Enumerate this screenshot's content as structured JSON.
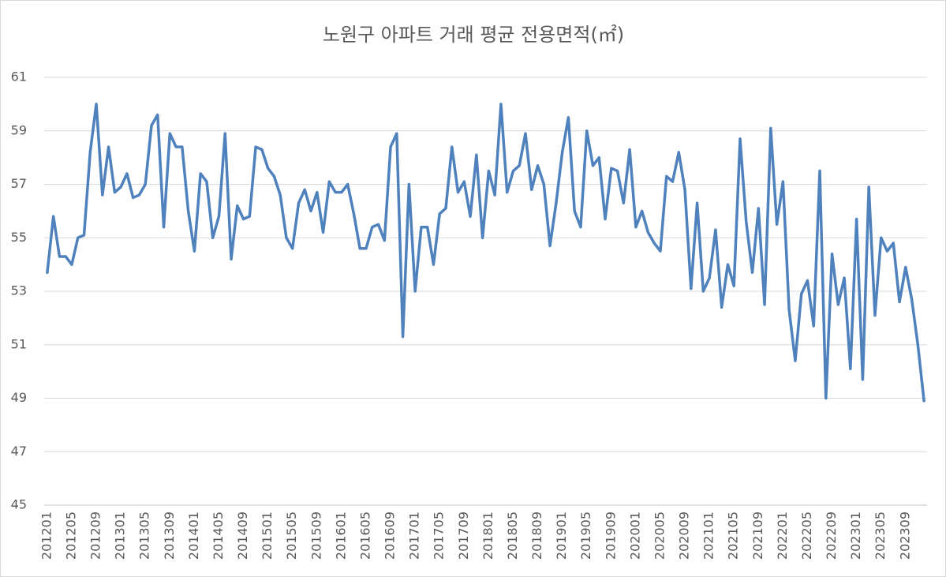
{
  "chart_data": {
    "type": "line",
    "title": "노원구 아파트 거래 평균 전용면적(㎡)",
    "categories": [
      "201201",
      null,
      null,
      null,
      "201205",
      null,
      null,
      null,
      "201209",
      null,
      null,
      null,
      "201301",
      null,
      null,
      null,
      "201305",
      null,
      null,
      null,
      "201309",
      null,
      null,
      null,
      "201401",
      null,
      null,
      null,
      "201405",
      null,
      null,
      null,
      "201409",
      null,
      null,
      null,
      "201501",
      null,
      null,
      null,
      "201505",
      null,
      null,
      null,
      "201509",
      null,
      null,
      null,
      "201601",
      null,
      null,
      null,
      "201605",
      null,
      null,
      null,
      "201609",
      null,
      null,
      null,
      "201701",
      null,
      null,
      null,
      "201705",
      null,
      null,
      null,
      "201709",
      null,
      null,
      null,
      "201801",
      null,
      null,
      null,
      "201805",
      null,
      null,
      null,
      "201809",
      null,
      null,
      null,
      "201901",
      null,
      null,
      null,
      "201905",
      null,
      null,
      null,
      "201909",
      null,
      null,
      null,
      "202001",
      null,
      null,
      null,
      "202005",
      null,
      null,
      null,
      "202009",
      null,
      null,
      null,
      "202101",
      null,
      null,
      null,
      "202105",
      null,
      null,
      null,
      "202109",
      null,
      null,
      null,
      "202201",
      null,
      null,
      null,
      "202205",
      null,
      null,
      null,
      "202209",
      null,
      null,
      null,
      "202301",
      null,
      null,
      null,
      "202305",
      null,
      null,
      null,
      "202309",
      null,
      null,
      null
    ],
    "values": [
      53.7,
      55.8,
      54.3,
      54.3,
      54.0,
      55.0,
      55.1,
      58.2,
      60.0,
      56.6,
      58.4,
      56.7,
      56.9,
      57.4,
      56.5,
      56.6,
      57.0,
      59.2,
      59.6,
      55.4,
      58.9,
      58.4,
      58.4,
      56.0,
      54.5,
      57.4,
      57.1,
      55.0,
      55.8,
      58.9,
      54.2,
      56.2,
      55.7,
      55.8,
      58.4,
      58.3,
      57.6,
      57.3,
      56.6,
      55.0,
      54.6,
      56.3,
      56.8,
      56.0,
      56.7,
      55.2,
      57.1,
      56.7,
      56.7,
      57.0,
      55.9,
      54.6,
      54.6,
      55.4,
      55.5,
      54.9,
      58.4,
      58.9,
      51.3,
      57.0,
      53.0,
      55.4,
      55.4,
      54.0,
      55.9,
      56.1,
      58.4,
      56.7,
      57.1,
      55.8,
      58.1,
      55.0,
      57.5,
      56.6,
      60.0,
      56.7,
      57.5,
      57.7,
      58.9,
      56.8,
      57.7,
      57.0,
      54.7,
      56.3,
      58.2,
      59.5,
      56.0,
      55.4,
      59.0,
      57.7,
      58.0,
      55.7,
      57.6,
      57.5,
      56.3,
      58.3,
      55.4,
      56.0,
      55.2,
      54.8,
      54.5,
      57.3,
      57.1,
      58.2,
      56.8,
      53.1,
      56.3,
      53.0,
      53.5,
      55.3,
      52.4,
      54.0,
      53.2,
      58.7,
      55.6,
      53.7,
      56.1,
      52.5,
      59.1,
      55.5,
      57.1,
      52.3,
      50.4,
      52.9,
      53.4,
      51.7,
      57.5,
      49.0,
      54.4,
      52.5,
      53.5,
      50.1,
      55.7,
      49.7,
      56.9,
      52.1,
      55.0,
      54.5,
      54.8,
      52.6,
      53.9,
      52.7,
      51.0,
      48.9
    ],
    "color": "#4f81bd",
    "ylim": [
      45,
      61
    ],
    "yticks": [
      45,
      47,
      49,
      51,
      53,
      55,
      57,
      59,
      61
    ],
    "grid": true
  }
}
